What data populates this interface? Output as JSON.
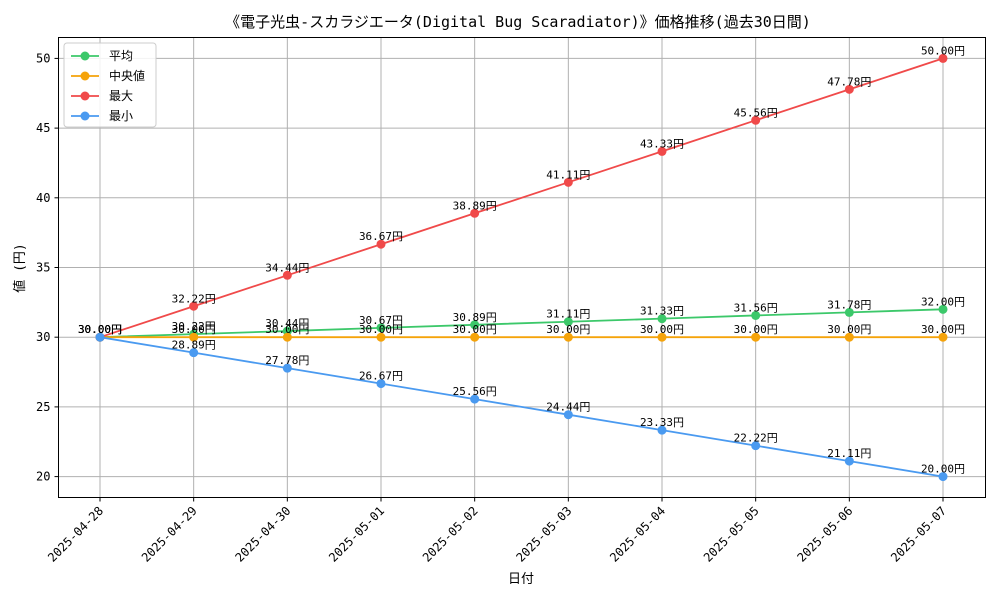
{
  "chart_data": {
    "type": "line",
    "title": "《電子光虫-スカラジエータ(Digital Bug Scaradiator)》価格推移(過去30日間)",
    "xlabel": "日付",
    "ylabel": "値 (円)",
    "x": [
      "2025-04-28",
      "2025-04-29",
      "2025-04-30",
      "2025-05-01",
      "2025-05-02",
      "2025-05-03",
      "2025-05-04",
      "2025-05-05",
      "2025-05-06",
      "2025-05-07"
    ],
    "ylim": [
      18.5,
      51.5
    ],
    "yticks": [
      20,
      25,
      30,
      35,
      40,
      45,
      50
    ],
    "grid": true,
    "legend_position": "top-left",
    "value_suffix": "円",
    "series": [
      {
        "name": "平均",
        "color": "#3cc86a",
        "values": [
          30.0,
          30.22,
          30.44,
          30.67,
          30.89,
          31.11,
          31.33,
          31.56,
          31.78,
          32.0
        ]
      },
      {
        "name": "中央値",
        "color": "#f5a30a",
        "values": [
          30.0,
          30.0,
          30.0,
          30.0,
          30.0,
          30.0,
          30.0,
          30.0,
          30.0,
          30.0
        ]
      },
      {
        "name": "最大",
        "color": "#f04a4a",
        "values": [
          30.0,
          32.22,
          34.44,
          36.67,
          38.89,
          41.11,
          43.33,
          45.56,
          47.78,
          50.0
        ]
      },
      {
        "name": "最小",
        "color": "#4a9af0",
        "values": [
          30.0,
          28.89,
          27.78,
          26.67,
          25.56,
          24.44,
          23.33,
          22.22,
          21.11,
          20.0
        ]
      }
    ]
  }
}
